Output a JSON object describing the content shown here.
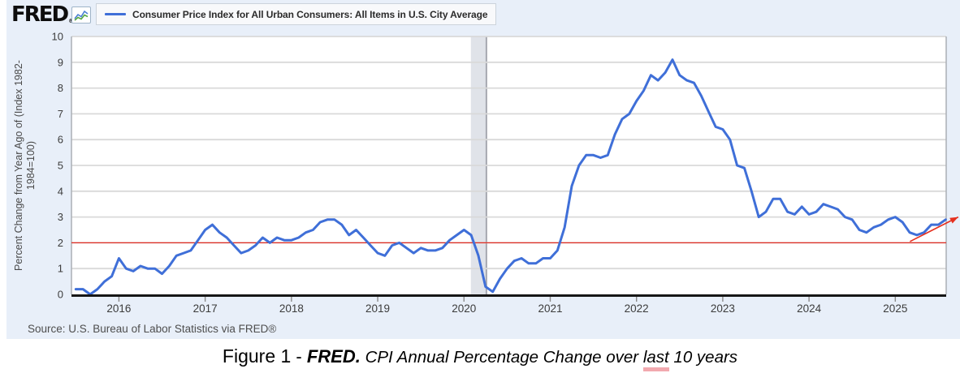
{
  "page": {
    "panel_background": "#e8eff9",
    "page_background": "#ffffff"
  },
  "header": {
    "logo_text": "FRED",
    "logo_mark": "®",
    "logo_icon": "fred-graph-icon",
    "legend": {
      "swatch_color": "#3f6fd8",
      "label": "Consumer Price Index for All Urban Consumers: All Items in U.S. City Average"
    }
  },
  "chart_data": {
    "type": "line",
    "title": "Consumer Price Index for All Urban Consumers: All Items in U.S. City Average",
    "xlabel": "",
    "ylabel": "Percent Change from Year Ago of (Index 1982-1984=100)",
    "ylabel_lines": [
      "Percent Change from Year Ago of (Index 1982-",
      "1984=100)"
    ],
    "ylim": [
      0,
      10
    ],
    "xlim": [
      2015.45,
      2025.59
    ],
    "y_ticks": [
      0,
      1,
      2,
      3,
      4,
      5,
      6,
      7,
      8,
      9,
      10
    ],
    "x_ticks": [
      2016,
      2017,
      2018,
      2019,
      2020,
      2021,
      2022,
      2023,
      2024,
      2025
    ],
    "grid": true,
    "legend_position": "top",
    "series": [
      {
        "name": "Consumer Price Index for All Urban Consumers: All Items in U.S. City Average",
        "color": "#3f6fd8",
        "frequency": "monthly",
        "start_year": 2015,
        "start_month": 7,
        "values": [
          0.2,
          0.2,
          0.0,
          0.2,
          0.5,
          0.7,
          1.4,
          1.0,
          0.9,
          1.1,
          1.0,
          1.0,
          0.8,
          1.1,
          1.5,
          1.6,
          1.7,
          2.1,
          2.5,
          2.7,
          2.4,
          2.2,
          1.9,
          1.6,
          1.7,
          1.9,
          2.2,
          2.0,
          2.2,
          2.1,
          2.1,
          2.2,
          2.4,
          2.5,
          2.8,
          2.9,
          2.9,
          2.7,
          2.3,
          2.5,
          2.2,
          1.9,
          1.6,
          1.5,
          1.9,
          2.0,
          1.8,
          1.6,
          1.8,
          1.7,
          1.7,
          1.8,
          2.1,
          2.3,
          2.5,
          2.3,
          1.5,
          0.3,
          0.1,
          0.6,
          1.0,
          1.3,
          1.4,
          1.2,
          1.2,
          1.4,
          1.4,
          1.7,
          2.6,
          4.2,
          5.0,
          5.4,
          5.4,
          5.3,
          5.4,
          6.2,
          6.8,
          7.0,
          7.5,
          7.9,
          8.5,
          8.3,
          8.6,
          9.1,
          8.5,
          8.3,
          8.2,
          7.7,
          7.1,
          6.5,
          6.4,
          6.0,
          5.0,
          4.9,
          4.0,
          3.0,
          3.2,
          3.7,
          3.7,
          3.2,
          3.1,
          3.4,
          3.1,
          3.2,
          3.5,
          3.4,
          3.3,
          3.0,
          2.9,
          2.5,
          2.4,
          2.6,
          2.7,
          2.9,
          3.0,
          2.8,
          2.4,
          2.3,
          2.4,
          2.7,
          2.7,
          2.9
        ]
      }
    ],
    "reference_line": {
      "value": 2.0,
      "color": "#e02b20"
    },
    "recession_band": {
      "from": 2020.08,
      "to": 2020.26,
      "fill": "#e0e3e9",
      "edge_color": "#a6a8b0"
    },
    "annotation_arrow": {
      "from_x": 2025.17,
      "from_y": 2.05,
      "to_x": 2025.73,
      "to_y": 3.0,
      "color": "#e5301f"
    },
    "axis_colors": {
      "gridline": "#d9d9d9",
      "plot_border": "#abafb6",
      "x_axis": "#161616",
      "tick_label": "#3c3c3c"
    }
  },
  "source_note": "Source: U.S. Bureau of Labor Statistics via FRED®",
  "caption": {
    "figure_label": "Figure 1",
    "separator": " - ",
    "brand": "FRED.",
    "description_before": "CPI Annual Percentage Change over ",
    "underlined_word": "last",
    "description_after": " 10 years",
    "underline_color": "#f2a9af"
  }
}
